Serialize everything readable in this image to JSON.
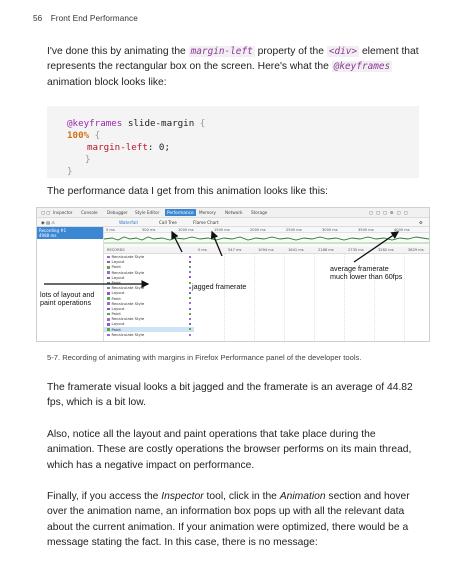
{
  "header": {
    "page_number": "56",
    "book_title": "Front End Performance"
  },
  "intro": {
    "t1": "I've done this by animating the ",
    "code1": "margin-left",
    "t2": " property of the ",
    "code2": "<div>",
    "t3": " element that represents the rectangular box on the screen. Here's what the ",
    "code3": "@keyframes",
    "t4": " animation block looks like:"
  },
  "code": {
    "line1_kw": "@keyframes",
    "line1_name": " slide-margin ",
    "line1_brace": "{",
    "line2_pct": "100%",
    "line2_brace": " {",
    "line3_prop": "margin-left",
    "line3_rest": ": 0;",
    "line4": "}",
    "line5": "}"
  },
  "perf_intro": "The performance data I get from this animation looks like this:",
  "screenshot": {
    "toolbar_tabs": [
      "Inspector",
      "Console",
      "Debugger",
      "Style Editor",
      "Performance",
      "Memory",
      "Network",
      "Storage"
    ],
    "toolbar_active": "Performance",
    "subtabs": [
      "Waterfall",
      "Call Tree",
      "Flame Chart"
    ],
    "recording_label": "Recording #1",
    "recording_time": "4988 ms",
    "ruler_ticks": [
      "0 ms",
      "500 ms",
      "1000 ms",
      "1500 ms",
      "2000 ms",
      "2500 ms",
      "3000 ms",
      "3500 ms",
      "4000 ms"
    ],
    "waterfall_ticks": [
      "0 ms",
      "547 ms",
      "1094 ms",
      "1641 ms",
      "2188 ms",
      "2735 ms",
      "3282 ms",
      "3829 ms"
    ],
    "markers_header": "RECORDS",
    "markers": [
      "Recalculate Style",
      "Layout",
      "Paint",
      "Recalculate Style",
      "Layout",
      "Paint",
      "Recalculate Style",
      "Layout",
      "Paint",
      "Recalculate Style",
      "Layout",
      "Paint",
      "Recalculate Style",
      "Layout",
      "Paint",
      "Recalculate Style"
    ],
    "colors": {
      "style": "#9b6bd0",
      "layout": "#8a5bc4",
      "paint": "#5aa84a",
      "fps": "#2e7d32",
      "accent": "#3b87d4"
    }
  },
  "annotations": {
    "layout_paint_1": "lots of layout and",
    "layout_paint_2": "paint operations",
    "jagged": "jagged framerate",
    "avg_1": "average framerate",
    "avg_2": "much lower than 60fps"
  },
  "caption": "5-7. Recording of animating with margins in Firefox Performance panel of the developer tools.",
  "para_framerate": "The framerate visual looks a bit jagged and the framerate is an average of 44.82 fps, which is a bit low.",
  "para_notice": "Also, notice all the layout and paint operations that take place during the animation. These are costly operations the browser performs on its main thread, which has a negative impact on performance.",
  "para_finally": {
    "t1": "Finally, if you access the ",
    "e1": "Inspector",
    "t2": " tool, click in the ",
    "e2": "Animation",
    "t3": " section and hover over the animation name, an information box pops up with all the relevant data about the current animation. If your animation were optimized, there would be a message stating the fact. In this case, there is no message:"
  }
}
